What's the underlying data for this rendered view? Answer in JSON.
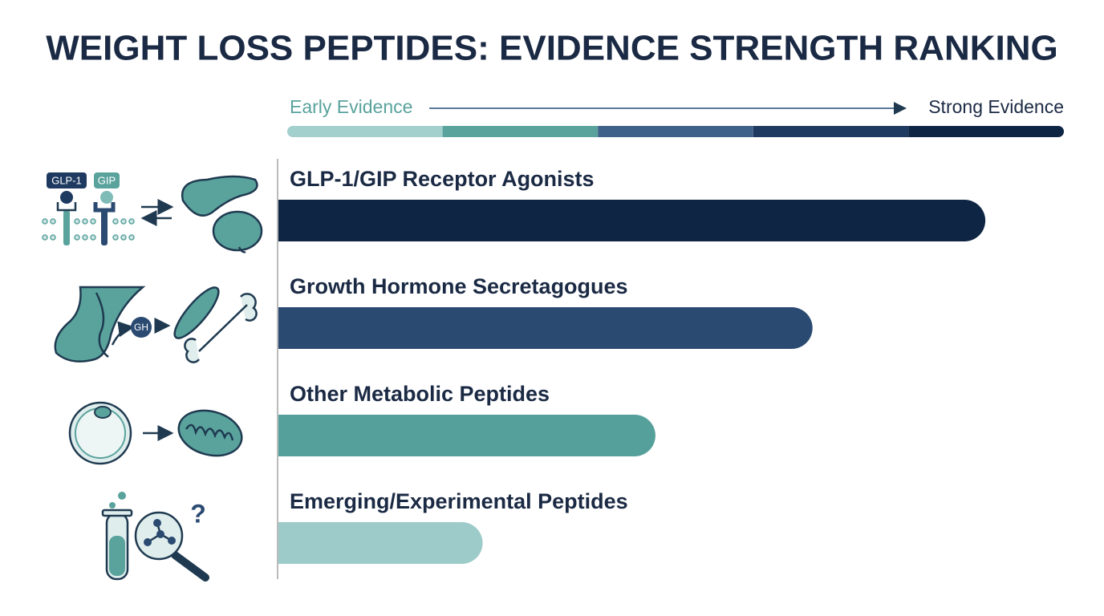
{
  "chart_data": {
    "type": "bar",
    "title": "WEIGHT LOSS PEPTIDES: EVIDENCE STRENGTH RANKING",
    "scale_labels": [
      "Early Evidence",
      "Strong Evidence"
    ],
    "scale_colors": [
      "#a3cfcd",
      "#5aa39d",
      "#3f628a",
      "#1f3a60",
      "#0f2544"
    ],
    "categories": [
      "GLP-1/GIP Receptor Agonists",
      "Growth Hormone Secretagogues",
      "Other Metabolic Peptides",
      "Emerging/Experimental Peptides"
    ],
    "values": [
      90,
      68,
      48,
      26
    ],
    "colors": [
      "#0f2544",
      "#2b4a72",
      "#56a09c",
      "#9ccbc9"
    ],
    "xlim": [
      0,
      100
    ]
  },
  "icons": {
    "glp1": "GLP-1",
    "gip": "GIP",
    "gh": "GH",
    "question": "?"
  }
}
